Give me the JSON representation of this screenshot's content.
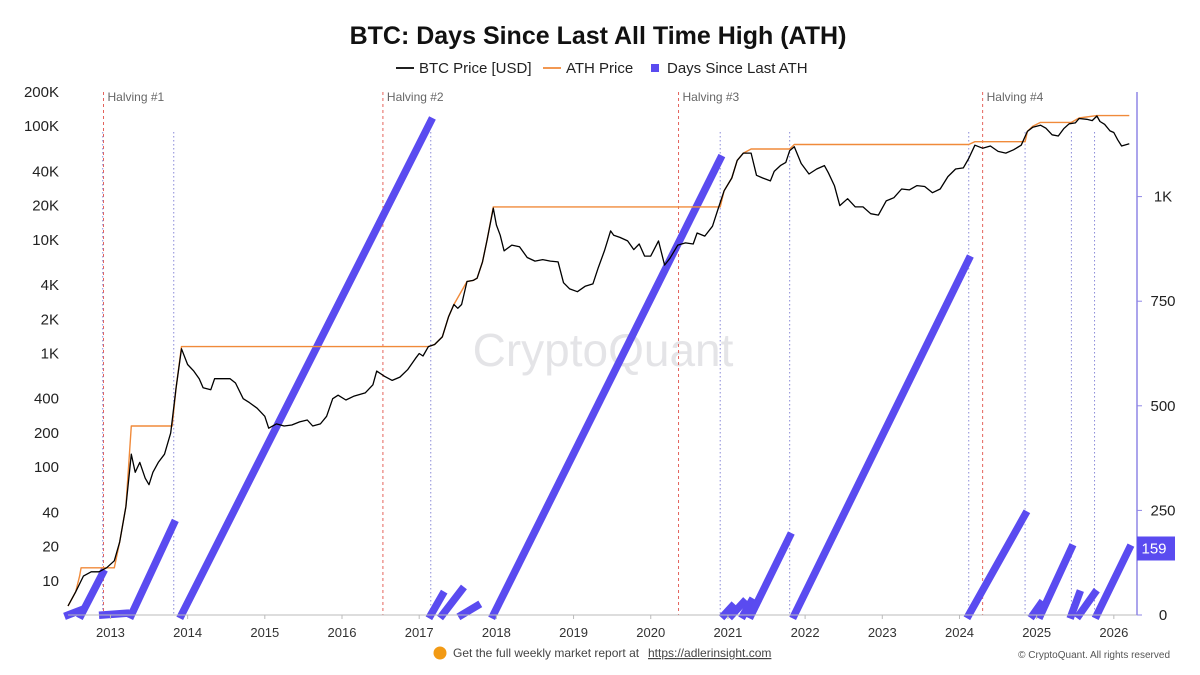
{
  "colors": {
    "price": "#000000",
    "ath": "#f08a3a",
    "days": "#5a4bf0",
    "halving": "#e2534b",
    "ath_marker": "#8a8ad8",
    "footer_dot": "#f29a14"
  },
  "chart_data": {
    "type": "line",
    "title": "BTC: Days Since Last All Time High (ATH)",
    "legend": [
      "BTC Price [USD]",
      "ATH Price",
      "Days Since Last ATH"
    ],
    "legend_position": "top-center",
    "grid": false,
    "x_ticks": [
      "2013",
      "2014",
      "2015",
      "2016",
      "2017",
      "2018",
      "2019",
      "2020",
      "2021",
      "2022",
      "2023",
      "2024",
      "2025",
      "2026"
    ],
    "x_range": [
      2012.45,
      2026.3
    ],
    "y_left": {
      "scale": "log",
      "range": [
        5,
        200000
      ],
      "tick_values": [
        10,
        20,
        40,
        100,
        200,
        400,
        1000,
        2000,
        4000,
        10000,
        20000,
        40000,
        100000,
        200000
      ],
      "tick_labels": [
        "10",
        "20",
        "40",
        "100",
        "200",
        "400",
        "1K",
        "2K",
        "4K",
        "10K",
        "20K",
        "40K",
        "100K",
        "200K"
      ]
    },
    "y_right": {
      "scale": "linear",
      "range": [
        0,
        1250
      ],
      "tick_values": [
        0,
        250,
        500,
        750,
        1000
      ],
      "tick_labels": [
        "0",
        "250",
        "500",
        "750",
        "1K"
      ]
    },
    "current_days_label": "159",
    "halvings": [
      {
        "label": "Halving #1",
        "x": 2012.91
      },
      {
        "label": "Halving #2",
        "x": 2016.53
      },
      {
        "label": "Halving #3",
        "x": 2020.36
      },
      {
        "label": "Halving #4",
        "x": 2024.3
      }
    ],
    "series": [
      {
        "name": "BTC Price [USD]",
        "axis": "left",
        "points": [
          [
            2012.45,
            6
          ],
          [
            2012.55,
            8
          ],
          [
            2012.65,
            11
          ],
          [
            2012.75,
            12
          ],
          [
            2012.85,
            12
          ],
          [
            2012.95,
            13
          ],
          [
            2013.05,
            15
          ],
          [
            2013.12,
            22
          ],
          [
            2013.2,
            45
          ],
          [
            2013.27,
            130
          ],
          [
            2013.32,
            90
          ],
          [
            2013.38,
            110
          ],
          [
            2013.45,
            80
          ],
          [
            2013.5,
            70
          ],
          [
            2013.55,
            90
          ],
          [
            2013.62,
            110
          ],
          [
            2013.7,
            130
          ],
          [
            2013.78,
            200
          ],
          [
            2013.85,
            500
          ],
          [
            2013.92,
            1100
          ],
          [
            2014.0,
            800
          ],
          [
            2014.08,
            700
          ],
          [
            2014.15,
            600
          ],
          [
            2014.2,
            500
          ],
          [
            2014.3,
            480
          ],
          [
            2014.35,
            600
          ],
          [
            2014.45,
            600
          ],
          [
            2014.55,
            600
          ],
          [
            2014.62,
            550
          ],
          [
            2014.72,
            400
          ],
          [
            2014.8,
            370
          ],
          [
            2014.9,
            330
          ],
          [
            2015.0,
            280
          ],
          [
            2015.05,
            220
          ],
          [
            2015.15,
            240
          ],
          [
            2015.25,
            230
          ],
          [
            2015.35,
            235
          ],
          [
            2015.45,
            250
          ],
          [
            2015.55,
            260
          ],
          [
            2015.62,
            230
          ],
          [
            2015.72,
            240
          ],
          [
            2015.8,
            280
          ],
          [
            2015.88,
            400
          ],
          [
            2015.95,
            430
          ],
          [
            2016.05,
            390
          ],
          [
            2016.15,
            420
          ],
          [
            2016.3,
            450
          ],
          [
            2016.4,
            530
          ],
          [
            2016.45,
            700
          ],
          [
            2016.55,
            630
          ],
          [
            2016.65,
            580
          ],
          [
            2016.75,
            620
          ],
          [
            2016.85,
            720
          ],
          [
            2016.95,
            900
          ],
          [
            2017.0,
            1000
          ],
          [
            2017.05,
            950
          ],
          [
            2017.12,
            1150
          ],
          [
            2017.2,
            1200
          ],
          [
            2017.3,
            1400
          ],
          [
            2017.38,
            2100
          ],
          [
            2017.45,
            2700
          ],
          [
            2017.5,
            2500
          ],
          [
            2017.55,
            2700
          ],
          [
            2017.62,
            4300
          ],
          [
            2017.7,
            4400
          ],
          [
            2017.75,
            4600
          ],
          [
            2017.82,
            6400
          ],
          [
            2017.88,
            10000
          ],
          [
            2017.96,
            19000
          ],
          [
            2018.0,
            13500
          ],
          [
            2018.05,
            11000
          ],
          [
            2018.1,
            8000
          ],
          [
            2018.2,
            9000
          ],
          [
            2018.3,
            8700
          ],
          [
            2018.4,
            7000
          ],
          [
            2018.5,
            6500
          ],
          [
            2018.6,
            6700
          ],
          [
            2018.7,
            6500
          ],
          [
            2018.8,
            6400
          ],
          [
            2018.87,
            4200
          ],
          [
            2018.95,
            3700
          ],
          [
            2019.05,
            3500
          ],
          [
            2019.15,
            3900
          ],
          [
            2019.25,
            4100
          ],
          [
            2019.32,
            5700
          ],
          [
            2019.4,
            8000
          ],
          [
            2019.48,
            12000
          ],
          [
            2019.52,
            11000
          ],
          [
            2019.6,
            10500
          ],
          [
            2019.7,
            9800
          ],
          [
            2019.78,
            8200
          ],
          [
            2019.85,
            9200
          ],
          [
            2019.92,
            7200
          ],
          [
            2020.0,
            7200
          ],
          [
            2020.1,
            9800
          ],
          [
            2020.18,
            6000
          ],
          [
            2020.25,
            6900
          ],
          [
            2020.35,
            9000
          ],
          [
            2020.45,
            9400
          ],
          [
            2020.55,
            9200
          ],
          [
            2020.6,
            11500
          ],
          [
            2020.7,
            10800
          ],
          [
            2020.8,
            13200
          ],
          [
            2020.87,
            18500
          ],
          [
            2020.95,
            27000
          ],
          [
            2021.05,
            35000
          ],
          [
            2021.12,
            50000
          ],
          [
            2021.2,
            58000
          ],
          [
            2021.3,
            58000
          ],
          [
            2021.37,
            37000
          ],
          [
            2021.45,
            35000
          ],
          [
            2021.55,
            33000
          ],
          [
            2021.6,
            40000
          ],
          [
            2021.68,
            45000
          ],
          [
            2021.75,
            48000
          ],
          [
            2021.8,
            61000
          ],
          [
            2021.86,
            66000
          ],
          [
            2021.95,
            47000
          ],
          [
            2022.05,
            38000
          ],
          [
            2022.15,
            42000
          ],
          [
            2022.25,
            45000
          ],
          [
            2022.3,
            39000
          ],
          [
            2022.38,
            30000
          ],
          [
            2022.45,
            20000
          ],
          [
            2022.55,
            23000
          ],
          [
            2022.65,
            19500
          ],
          [
            2022.75,
            19500
          ],
          [
            2022.85,
            17000
          ],
          [
            2022.95,
            16500
          ],
          [
            2023.05,
            22000
          ],
          [
            2023.15,
            23500
          ],
          [
            2023.25,
            28000
          ],
          [
            2023.35,
            27500
          ],
          [
            2023.45,
            30000
          ],
          [
            2023.55,
            29500
          ],
          [
            2023.65,
            26000
          ],
          [
            2023.75,
            28000
          ],
          [
            2023.85,
            36000
          ],
          [
            2023.95,
            42000
          ],
          [
            2024.05,
            43000
          ],
          [
            2024.12,
            52000
          ],
          [
            2024.2,
            68000
          ],
          [
            2024.3,
            64000
          ],
          [
            2024.4,
            67000
          ],
          [
            2024.5,
            60000
          ],
          [
            2024.6,
            58000
          ],
          [
            2024.7,
            62000
          ],
          [
            2024.8,
            68000
          ],
          [
            2024.88,
            90000
          ],
          [
            2024.95,
            98000
          ],
          [
            2025.05,
            102000
          ],
          [
            2025.12,
            96000
          ],
          [
            2025.2,
            84000
          ],
          [
            2025.28,
            82000
          ],
          [
            2025.35,
            95000
          ],
          [
            2025.42,
            105000
          ],
          [
            2025.5,
            107000
          ],
          [
            2025.55,
            117000
          ],
          [
            2025.65,
            115000
          ],
          [
            2025.72,
            112000
          ],
          [
            2025.78,
            123000
          ],
          [
            2025.82,
            110000
          ],
          [
            2025.88,
            104000
          ],
          [
            2025.95,
            91000
          ],
          [
            2026.0,
            88000
          ],
          [
            2026.05,
            76000
          ],
          [
            2026.1,
            67000
          ],
          [
            2026.2,
            70000
          ]
        ]
      },
      {
        "name": "ATH Price",
        "axis": "left",
        "points": [
          [
            2012.45,
            6
          ],
          [
            2012.55,
            8
          ],
          [
            2012.6,
            11
          ],
          [
            2012.62,
            13
          ],
          [
            2013.05,
            13
          ],
          [
            2013.12,
            22
          ],
          [
            2013.2,
            45
          ],
          [
            2013.27,
            230
          ],
          [
            2013.8,
            230
          ],
          [
            2013.85,
            500
          ],
          [
            2013.92,
            1150
          ],
          [
            2017.05,
            1150
          ],
          [
            2017.12,
            1150
          ],
          [
            2017.2,
            1200
          ],
          [
            2017.3,
            1400
          ],
          [
            2017.38,
            2100
          ],
          [
            2017.45,
            2700
          ],
          [
            2017.62,
            4300
          ],
          [
            2017.7,
            4400
          ],
          [
            2017.75,
            4600
          ],
          [
            2017.82,
            6400
          ],
          [
            2017.88,
            10000
          ],
          [
            2017.96,
            19500
          ],
          [
            2020.9,
            19500
          ],
          [
            2020.95,
            27000
          ],
          [
            2021.05,
            35000
          ],
          [
            2021.12,
            50000
          ],
          [
            2021.2,
            58000
          ],
          [
            2021.3,
            63000
          ],
          [
            2021.8,
            63000
          ],
          [
            2021.86,
            69000
          ],
          [
            2024.12,
            69000
          ],
          [
            2024.2,
            73000
          ],
          [
            2024.85,
            73000
          ],
          [
            2024.88,
            90000
          ],
          [
            2024.95,
            100000
          ],
          [
            2025.05,
            108000
          ],
          [
            2025.45,
            108000
          ],
          [
            2025.55,
            118000
          ],
          [
            2025.78,
            124000
          ],
          [
            2026.2,
            124000
          ]
        ]
      },
      {
        "name": "Days Since Last ATH",
        "axis": "right",
        "segments": [
          [
            [
              2012.45,
              0
            ],
            [
              2012.62,
              12
            ]
          ],
          [
            [
              2012.62,
              0
            ],
            [
              2012.9,
              100
            ]
          ],
          [
            [
              2012.9,
              0
            ],
            [
              2013.2,
              4
            ]
          ],
          [
            [
              2013.27,
              0
            ],
            [
              2013.82,
              218
            ]
          ],
          [
            [
              2013.92,
              0
            ],
            [
              2017.15,
              1180
            ]
          ],
          [
            [
              2017.15,
              0
            ],
            [
              2017.3,
              48
            ]
          ],
          [
            [
              2017.3,
              0
            ],
            [
              2017.55,
              60
            ]
          ],
          [
            [
              2017.55,
              0
            ],
            [
              2017.75,
              22
            ]
          ],
          [
            [
              2017.96,
              0
            ],
            [
              2020.9,
              1090
            ]
          ],
          [
            [
              2020.95,
              0
            ],
            [
              2021.05,
              20
            ]
          ],
          [
            [
              2021.05,
              0
            ],
            [
              2021.2,
              30
            ]
          ],
          [
            [
              2021.2,
              0
            ],
            [
              2021.3,
              32
            ]
          ],
          [
            [
              2021.3,
              0
            ],
            [
              2021.8,
              188
            ]
          ],
          [
            [
              2021.86,
              0
            ],
            [
              2024.12,
              850
            ]
          ],
          [
            [
              2024.12,
              0
            ],
            [
              2024.85,
              240
            ]
          ],
          [
            [
              2024.95,
              0
            ],
            [
              2025.05,
              26
            ]
          ],
          [
            [
              2025.05,
              0
            ],
            [
              2025.45,
              160
            ]
          ],
          [
            [
              2025.45,
              0
            ],
            [
              2025.55,
              50
            ]
          ],
          [
            [
              2025.55,
              0
            ],
            [
              2025.75,
              52
            ]
          ],
          [
            [
              2025.78,
              0
            ],
            [
              2026.2,
              159
            ]
          ]
        ]
      }
    ],
    "ath_date_markers": [
      2012.9,
      2013.82,
      2017.15,
      2020.9,
      2021.8,
      2024.12,
      2024.85,
      2025.45,
      2025.75
    ]
  },
  "watermark": "CryptoQuant",
  "footer": {
    "text": "Get the full weekly market report at",
    "link": "https://adlerinsight.com",
    "copyright": "© CryptoQuant. All rights reserved"
  }
}
